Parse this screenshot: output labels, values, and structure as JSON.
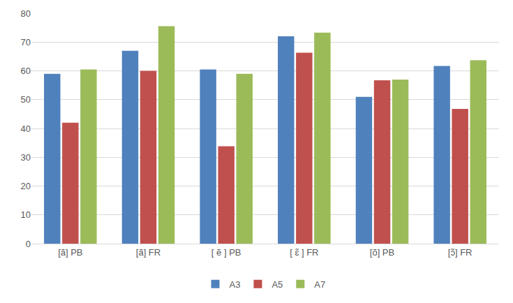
{
  "chart_data": {
    "type": "bar",
    "categories": [
      "[ã] PB",
      "[ã] FR",
      "[ ẽ ] PB",
      "[ ɛ̃ ] FR",
      "[õ] PB",
      "[ɔ̃] FR"
    ],
    "series": [
      {
        "name": "A3",
        "color": "#4f81bd",
        "values": [
          59,
          67,
          60.5,
          72,
          51,
          61.7
        ]
      },
      {
        "name": "A5",
        "color": "#c0504d",
        "values": [
          42,
          60,
          33.8,
          66.3,
          56.7,
          46.8
        ]
      },
      {
        "name": "A7",
        "color": "#9bbb59",
        "values": [
          60.5,
          75.5,
          59,
          73.3,
          57,
          63.7
        ]
      }
    ],
    "ylim": [
      0,
      80
    ],
    "yticks": [
      0,
      10,
      20,
      30,
      40,
      50,
      60,
      70,
      80
    ],
    "grid": true,
    "legend": "bottom"
  }
}
